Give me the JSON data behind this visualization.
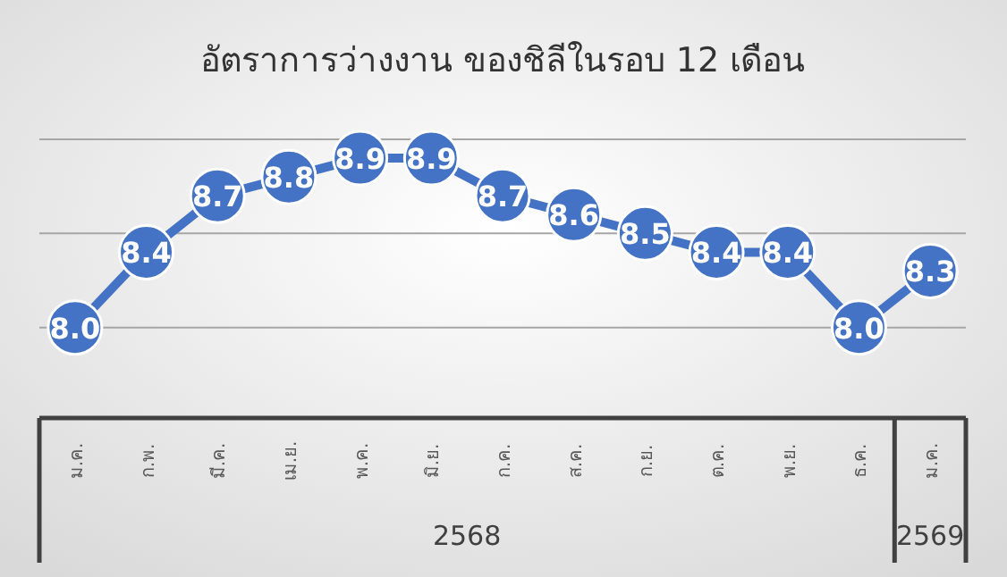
{
  "chart_data": {
    "type": "line",
    "title": "อัตราการว่างงาน ของชิลีในรอบ 12 เดือน",
    "categories": [
      "ม.ค.",
      "ก.พ.",
      "มี.ค.",
      "เม.ย.",
      "พ.ค.",
      "มิ.ย.",
      "ก.ค.",
      "ส.ค.",
      "ก.ย.",
      "ต.ค.",
      "พ.ย.",
      "ธ.ค.",
      "ม.ค."
    ],
    "series": [
      {
        "color": "#4472c4",
        "values": [
          8.0,
          8.4,
          8.7,
          8.8,
          8.9,
          8.9,
          8.7,
          8.6,
          8.5,
          8.4,
          8.4,
          8.0,
          8.3
        ],
        "value_labels": [
          "8.0",
          "8.4",
          "8.7",
          "8.8",
          "8.9",
          "8.9",
          "8.7",
          "8.6",
          "8.5",
          "8.4",
          "8.4",
          "8.0",
          "8.3"
        ]
      }
    ],
    "ylim": [
      7.5,
      9.0
    ],
    "ref_lines": [
      {
        "axis": "y",
        "value": 8.0,
        "color": "#a6a6a6"
      },
      {
        "axis": "y",
        "value": 8.5,
        "color": "#a6a6a6"
      },
      {
        "axis": "y",
        "value": 9.0,
        "color": "#a6a6a6"
      }
    ],
    "marker": "circle",
    "line_style": "solid",
    "tick_labels": "x",
    "annotations": [
      "2568",
      "2569"
    ]
  }
}
